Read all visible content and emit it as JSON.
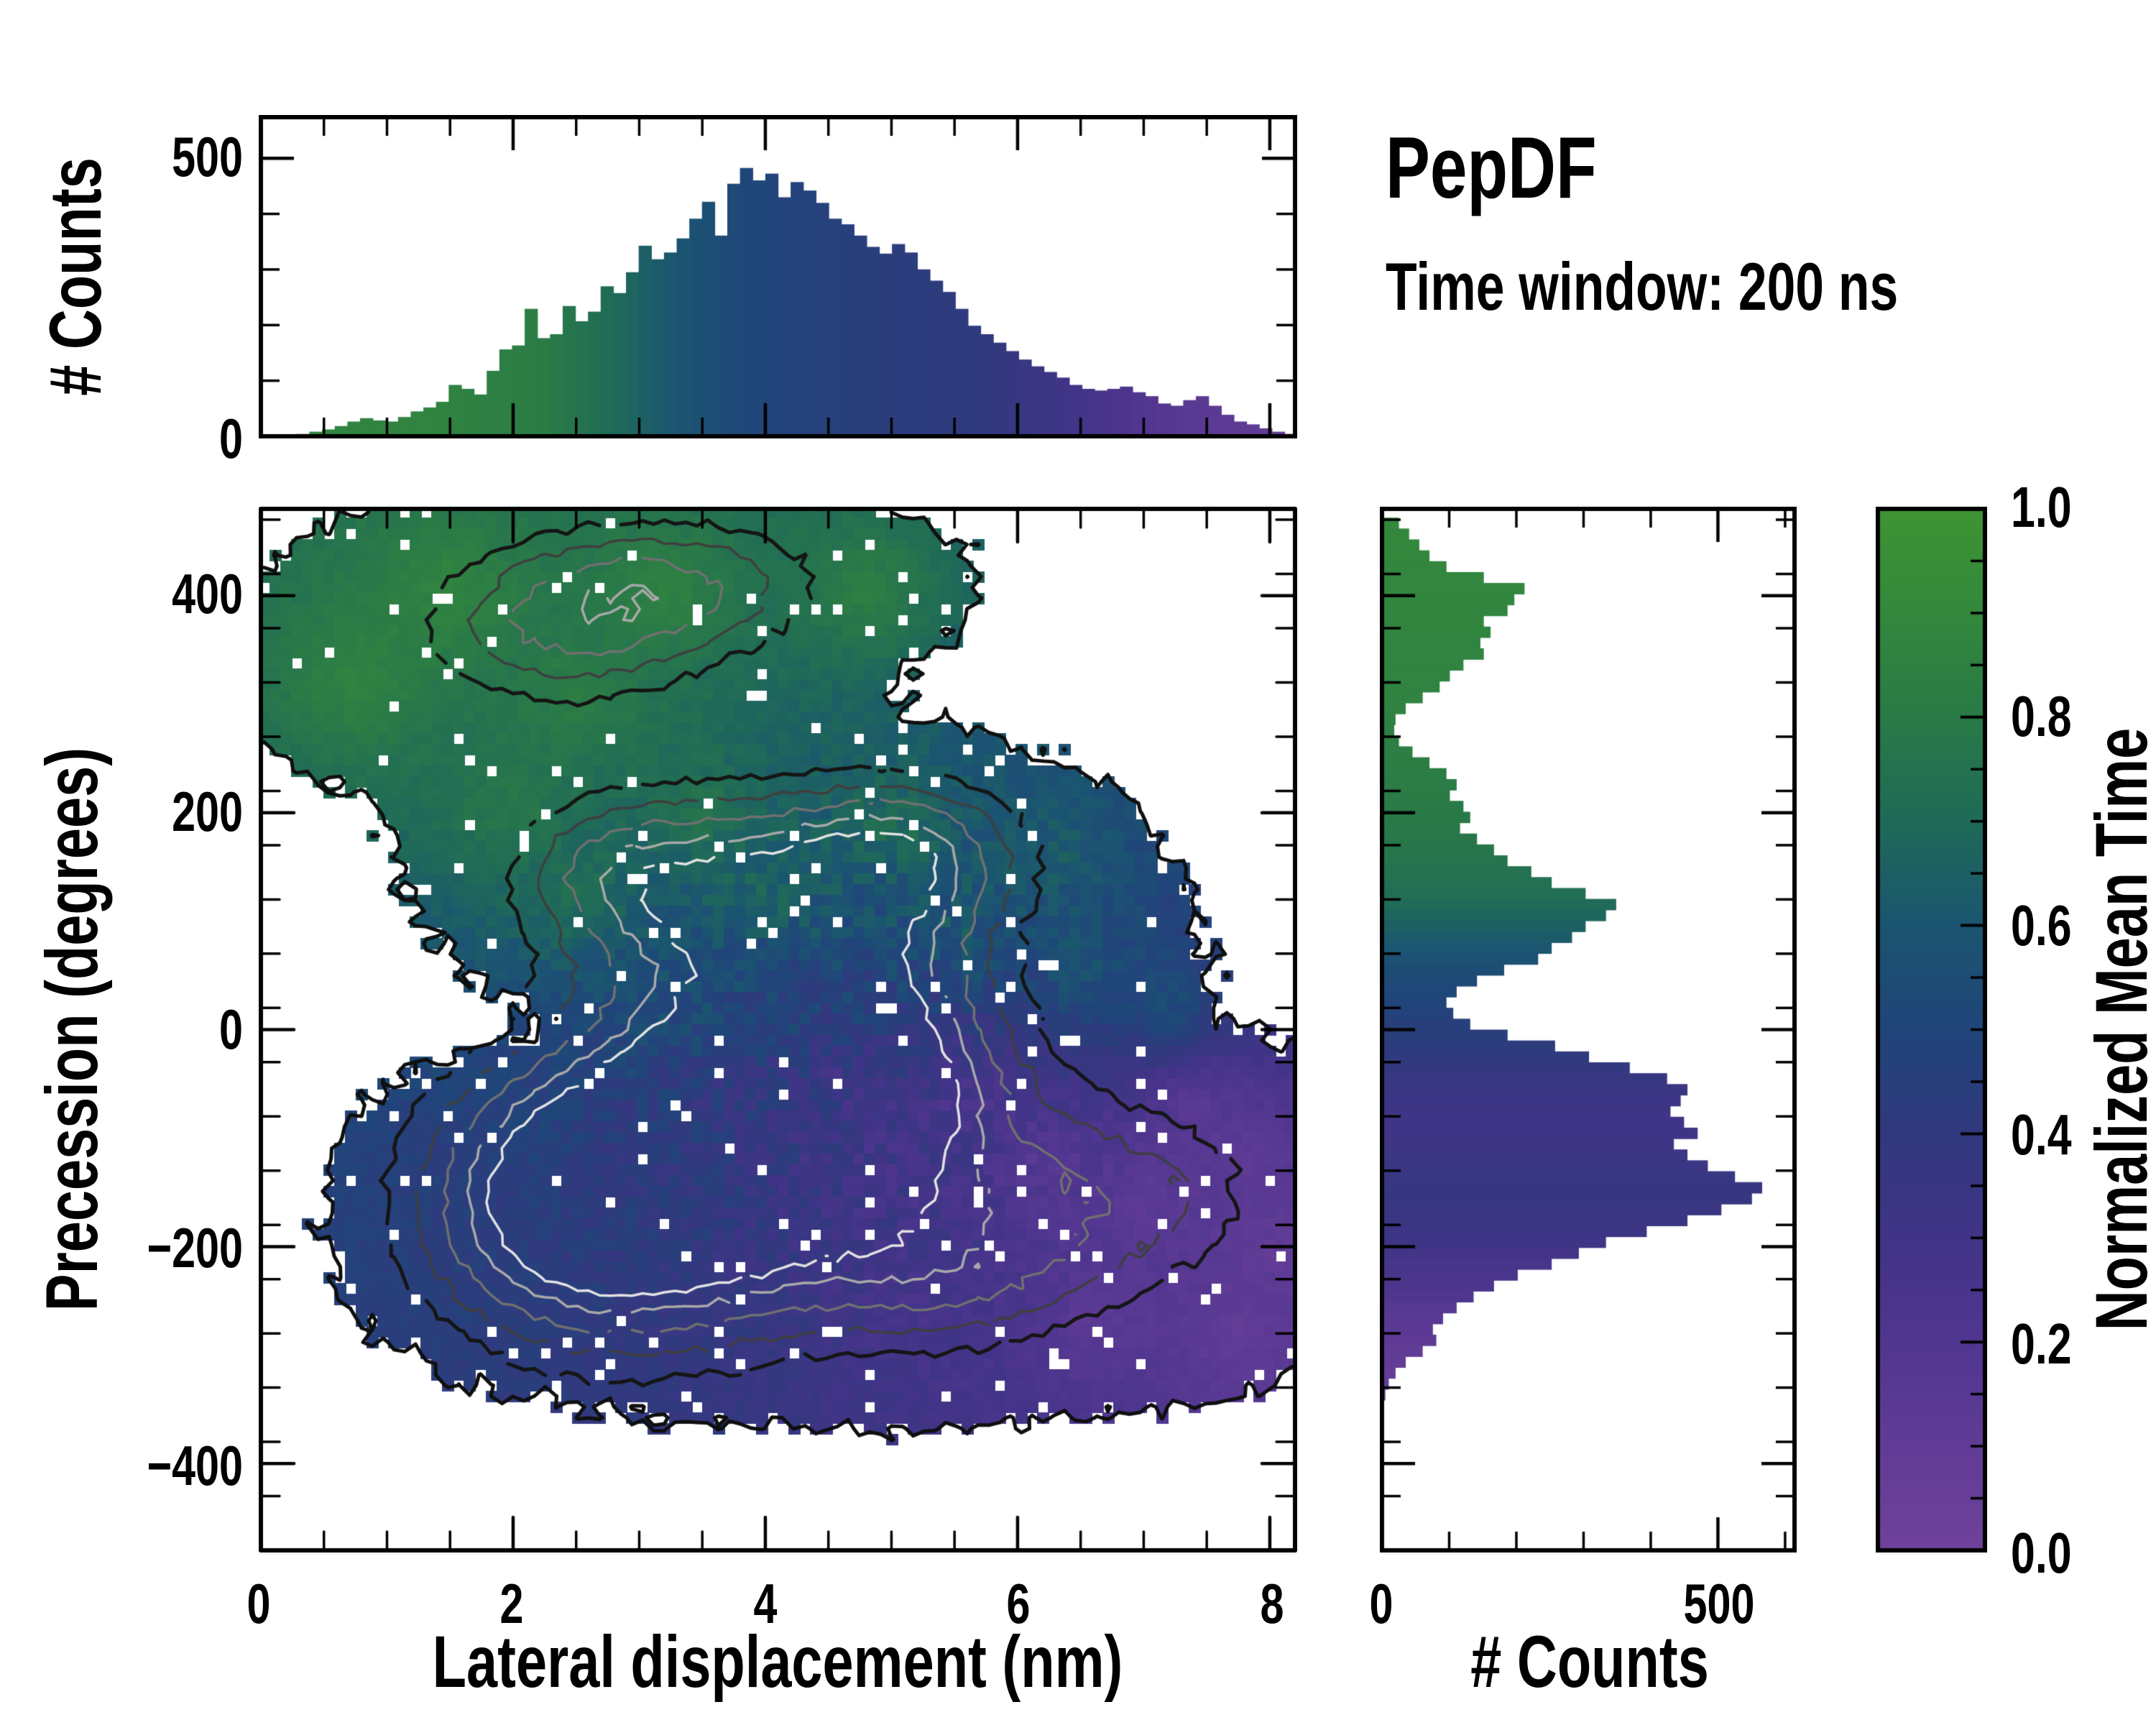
{
  "title": "PepDF",
  "subtitle": "Time window: 200 ns",
  "chart_data": {
    "type": "heatmap",
    "title": "PepDF",
    "annotation": "Time window: 200 ns",
    "layout": "2D pixel heatmap with marginal histograms and colorbar",
    "main": {
      "xlabel": "Lateral displacement (nm)",
      "ylabel": "Precession (degrees)",
      "xlim": [
        0,
        8.2
      ],
      "ylim": [
        -480,
        480
      ],
      "xticks_major": [
        0,
        2,
        4,
        6,
        8
      ],
      "xtick_labels": [
        "0",
        "2",
        "4",
        "6",
        "8"
      ],
      "xtick_minor_step": 0.5,
      "yticks_major": [
        400,
        200,
        0,
        -200,
        -400
      ],
      "ytick_labels": [
        "400",
        "200",
        "0",
        "−200",
        "−400"
      ],
      "ytick_minor_step": 50,
      "grid_nx": 96,
      "grid_ny": 97,
      "occupancy_threshold": 0.42,
      "edge_noise": 0.13,
      "hole_fraction": 0.035,
      "boundary_color": "#0f0f0f",
      "boundary_width": 5,
      "occupancy_bumps": [
        [
          1.1,
          360,
          1.0,
          0.75,
          70
        ],
        [
          2.2,
          395,
          1.05,
          0.95,
          62
        ],
        [
          3.3,
          415,
          0.95,
          0.85,
          55
        ],
        [
          4.3,
          420,
          0.7,
          0.8,
          45
        ],
        [
          5.0,
          410,
          0.5,
          0.55,
          38
        ],
        [
          2.6,
          330,
          0.9,
          1.1,
          55
        ],
        [
          0.55,
          320,
          0.8,
          0.55,
          55
        ],
        [
          3.6,
          350,
          0.65,
          0.9,
          45
        ],
        [
          2.2,
          150,
          0.85,
          0.75,
          65
        ],
        [
          3.1,
          185,
          0.95,
          0.9,
          70
        ],
        [
          4.2,
          175,
          0.95,
          1.0,
          68
        ],
        [
          5.3,
          160,
          0.9,
          0.9,
          65
        ],
        [
          6.1,
          120,
          0.8,
          0.75,
          70
        ],
        [
          3.6,
          90,
          0.8,
          0.9,
          60
        ],
        [
          5.0,
          80,
          0.75,
          0.9,
          55
        ],
        [
          6.5,
          30,
          0.6,
          0.7,
          75
        ],
        [
          2.0,
          240,
          0.5,
          0.6,
          40
        ],
        [
          4.6,
          245,
          0.45,
          0.8,
          35
        ],
        [
          2.0,
          -160,
          0.9,
          0.8,
          95
        ],
        [
          2.9,
          -130,
          1.0,
          1.0,
          100
        ],
        [
          3.9,
          -100,
          1.0,
          1.0,
          95
        ],
        [
          4.8,
          -60,
          0.9,
          0.9,
          80
        ],
        [
          3.4,
          -230,
          0.85,
          1.0,
          75
        ],
        [
          4.8,
          -240,
          0.75,
          0.9,
          65
        ],
        [
          5.6,
          -260,
          0.6,
          0.9,
          55
        ],
        [
          4.6,
          -200,
          0.8,
          1.0,
          80
        ],
        [
          5.8,
          -150,
          0.85,
          1.1,
          90
        ],
        [
          6.9,
          -130,
          0.8,
          1.0,
          80
        ],
        [
          7.6,
          -180,
          0.7,
          0.8,
          75
        ],
        [
          6.2,
          -250,
          0.7,
          1.0,
          60
        ],
        [
          7.4,
          -270,
          0.55,
          0.8,
          50
        ],
        [
          1.3,
          -180,
          0.6,
          0.55,
          70
        ],
        [
          5.3,
          10,
          0.5,
          0.7,
          45
        ],
        [
          3.5,
          0,
          0.45,
          0.5,
          50
        ],
        [
          7.8,
          -100,
          0.5,
          0.6,
          60
        ],
        [
          3.0,
          275,
          -0.5,
          1.6,
          26
        ],
        [
          2.4,
          -5,
          -0.45,
          0.8,
          38
        ],
        [
          5.9,
          -35,
          -0.5,
          0.65,
          45
        ],
        [
          6.9,
          -60,
          -0.35,
          0.55,
          38
        ],
        [
          6.4,
          -205,
          -0.3,
          0.45,
          32
        ]
      ],
      "density_bumps": [
        [
          3.5,
          -130,
          1.0,
          1.2,
          110
        ],
        [
          4.65,
          -45,
          0.85,
          0.95,
          85
        ],
        [
          4.3,
          120,
          0.68,
          1.0,
          75
        ],
        [
          2.85,
          145,
          0.5,
          0.7,
          55
        ],
        [
          3.3,
          410,
          0.5,
          1.0,
          50
        ],
        [
          2.3,
          360,
          0.44,
          0.9,
          55
        ],
        [
          5.2,
          165,
          0.45,
          0.7,
          50
        ],
        [
          2.3,
          -170,
          0.55,
          0.9,
          90
        ],
        [
          6.9,
          -150,
          0.45,
          0.9,
          70
        ],
        [
          5.6,
          -230,
          0.4,
          0.8,
          55
        ]
      ],
      "contour_levels": [
        [
          0.3,
          "#151515",
          5
        ],
        [
          0.44,
          "#3f3f3f",
          3.5
        ],
        [
          0.58,
          "#707070",
          3.5
        ],
        [
          0.72,
          "#a9a9a9",
          3.5
        ],
        [
          0.84,
          "#e2e2e2",
          3.5
        ]
      ],
      "value_yscale": 115,
      "value_noise_base": 0.02,
      "value_noise_bumps": [
        [
          4.3,
          -70,
          0.07,
          1.6,
          150
        ],
        [
          5.3,
          110,
          0.03,
          1.2,
          90
        ]
      ],
      "value_anchors": [
        [
          1.5,
          400,
          0.88
        ],
        [
          3.2,
          400,
          0.86
        ],
        [
          4.8,
          400,
          0.84
        ],
        [
          0.8,
          320,
          0.87
        ],
        [
          2.5,
          300,
          0.84
        ],
        [
          2.0,
          200,
          0.8
        ],
        [
          3.5,
          200,
          0.78
        ],
        [
          5.0,
          185,
          0.74
        ],
        [
          6.3,
          160,
          0.66
        ],
        [
          2.5,
          120,
          0.74
        ],
        [
          4.0,
          120,
          0.7
        ],
        [
          5.5,
          95,
          0.63
        ],
        [
          6.5,
          60,
          0.6
        ],
        [
          7.2,
          20,
          0.58
        ],
        [
          3.3,
          40,
          0.55
        ],
        [
          4.5,
          30,
          0.5
        ],
        [
          2.2,
          -40,
          0.47
        ],
        [
          1.5,
          -150,
          0.44
        ],
        [
          2.5,
          -220,
          0.43
        ],
        [
          3.0,
          -120,
          0.4
        ],
        [
          3.8,
          -60,
          0.36
        ],
        [
          4.6,
          -40,
          0.3
        ],
        [
          5.0,
          -120,
          0.27
        ],
        [
          4.2,
          -160,
          0.33
        ],
        [
          3.6,
          -280,
          0.38
        ],
        [
          5.6,
          -60,
          0.22
        ],
        [
          6.2,
          -120,
          0.14
        ],
        [
          7.0,
          -160,
          0.1
        ],
        [
          7.8,
          -120,
          0.1
        ],
        [
          6.6,
          -260,
          0.12
        ],
        [
          7.8,
          -280,
          0.08
        ],
        [
          5.2,
          -260,
          0.25
        ],
        [
          4.8,
          -300,
          0.3
        ],
        [
          7.4,
          -70,
          0.12
        ],
        [
          8.0,
          -200,
          0.08
        ]
      ]
    },
    "top_histogram": {
      "ylabel": "# Counts",
      "yticks": [
        500,
        0
      ],
      "ytick_labels": [
        "500",
        "0"
      ],
      "ytick_minor_step": 100,
      "ylim": [
        0,
        574
      ],
      "bin_start": 0,
      "bin_width": 0.1,
      "values": [
        3,
        5,
        6,
        8,
        12,
        16,
        22,
        30,
        36,
        32,
        30,
        38,
        48,
        55,
        65,
        95,
        88,
        78,
        120,
        158,
        165,
        230,
        178,
        185,
        235,
        208,
        225,
        270,
        258,
        295,
        342,
        318,
        330,
        355,
        390,
        420,
        360,
        452,
        480,
        458,
        470,
        428,
        455,
        440,
        418,
        390,
        380,
        360,
        340,
        328,
        345,
        330,
        300,
        280,
        260,
        230,
        200,
        185,
        170,
        155,
        140,
        128,
        118,
        108,
        95,
        88,
        85,
        88,
        92,
        82,
        75,
        62,
        58,
        68,
        75,
        58,
        42,
        30,
        25,
        18,
        12,
        8
      ]
    },
    "right_histogram": {
      "xlabel": "# Counts",
      "xticks": [
        0,
        500
      ],
      "xtick_labels": [
        "0",
        "500"
      ],
      "xtick_minor_step": 100,
      "xlim": [
        0,
        614
      ],
      "bin_start": 470,
      "bin_step": -10,
      "values": [
        25,
        40,
        55,
        70,
        95,
        150,
        210,
        195,
        185,
        150,
        160,
        145,
        150,
        120,
        100,
        85,
        60,
        35,
        20,
        18,
        25,
        45,
        70,
        95,
        110,
        100,
        120,
        130,
        115,
        140,
        165,
        185,
        220,
        250,
        300,
        345,
        330,
        300,
        280,
        250,
        230,
        180,
        140,
        110,
        95,
        105,
        130,
        185,
        255,
        305,
        365,
        420,
        450,
        440,
        425,
        445,
        465,
        430,
        450,
        480,
        520,
        560,
        545,
        500,
        450,
        390,
        330,
        290,
        250,
        200,
        165,
        135,
        110,
        90,
        75,
        80,
        60,
        35,
        20,
        10,
        5,
        2,
        0,
        0,
        0,
        0,
        0,
        0,
        0,
        0,
        0,
        0,
        0,
        0
      ]
    },
    "colorbar": {
      "label": "Normalized Mean Time",
      "ticks": [
        1.0,
        0.8,
        0.6,
        0.4,
        0.2,
        0.0
      ],
      "tick_labels": [
        "1.0",
        "0.8",
        "0.6",
        "0.4",
        "0.2",
        "0.0"
      ],
      "minor_step": 0.05,
      "stops": [
        [
          0.0,
          "#6f429b"
        ],
        [
          0.1,
          "#613c96"
        ],
        [
          0.2,
          "#513690"
        ],
        [
          0.3,
          "#413487"
        ],
        [
          0.4,
          "#31397e"
        ],
        [
          0.5,
          "#20457a"
        ],
        [
          0.6,
          "#1b5570"
        ],
        [
          0.7,
          "#1f6a58"
        ],
        [
          0.8,
          "#2a7a47"
        ],
        [
          0.9,
          "#33883c"
        ],
        [
          1.0,
          "#3f9434"
        ]
      ]
    },
    "value_profile_x": [
      [
        0,
        0.88
      ],
      [
        1.5,
        0.86
      ],
      [
        2.2,
        0.82
      ],
      [
        2.6,
        0.74
      ],
      [
        3.0,
        0.66
      ],
      [
        3.4,
        0.58
      ],
      [
        3.8,
        0.52
      ],
      [
        4.2,
        0.48
      ],
      [
        4.8,
        0.45
      ],
      [
        5.4,
        0.42
      ],
      [
        5.8,
        0.4
      ],
      [
        6.2,
        0.33
      ],
      [
        6.6,
        0.27
      ],
      [
        7.0,
        0.2
      ],
      [
        7.4,
        0.15
      ],
      [
        7.8,
        0.11
      ],
      [
        8.2,
        0.08
      ]
    ],
    "value_profile_y": [
      [
        480,
        0.9
      ],
      [
        380,
        0.88
      ],
      [
        300,
        0.86
      ],
      [
        240,
        0.82
      ],
      [
        170,
        0.78
      ],
      [
        120,
        0.72
      ],
      [
        90,
        0.64
      ],
      [
        60,
        0.56
      ],
      [
        30,
        0.5
      ],
      [
        0,
        0.45
      ],
      [
        -30,
        0.4
      ],
      [
        -60,
        0.33
      ],
      [
        -90,
        0.3
      ],
      [
        -120,
        0.34
      ],
      [
        -150,
        0.37
      ],
      [
        -190,
        0.32
      ],
      [
        -230,
        0.24
      ],
      [
        -260,
        0.16
      ],
      [
        -290,
        0.1
      ],
      [
        -330,
        0.08
      ],
      [
        -480,
        0.08
      ]
    ]
  }
}
